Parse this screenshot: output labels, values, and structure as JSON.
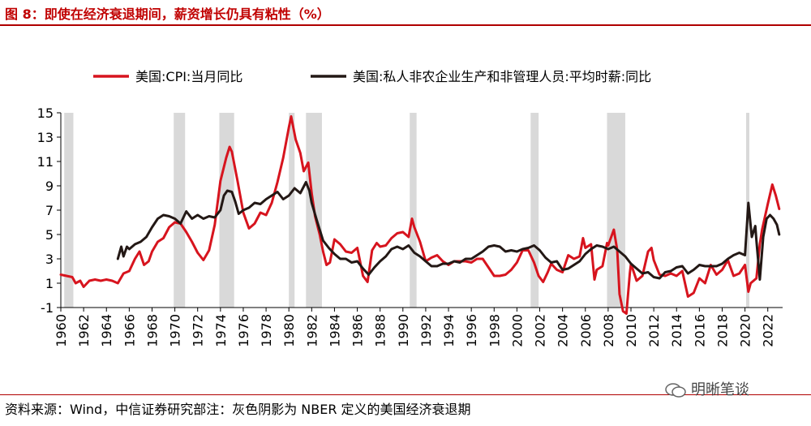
{
  "figure": {
    "title": "图 8：即使在经济衰退期间，薪资增长仍具有粘性（%）",
    "source": "资料来源：Wind，中信证券研究部注：灰色阴影为 NBER 定义的美国经济衰退期",
    "watermark": "明晰笔谈"
  },
  "chart_data": {
    "type": "line",
    "title": "",
    "xlabel": "",
    "ylabel": "",
    "ylim": [
      -1,
      15
    ],
    "yticks": [
      "15",
      "13",
      "11",
      "9",
      "7",
      "5",
      "3",
      "1",
      "-1"
    ],
    "xlim": [
      1960,
      2023.3
    ],
    "xticks": [
      "1960",
      "1962",
      "1964",
      "1966",
      "1968",
      "1970",
      "1972",
      "1974",
      "1976",
      "1978",
      "1980",
      "1982",
      "1984",
      "1986",
      "1988",
      "1990",
      "1992",
      "1994",
      "1996",
      "1998",
      "2000",
      "2002",
      "2004",
      "2006",
      "2008",
      "2010",
      "2012",
      "2014",
      "2016",
      "2018",
      "2020",
      "2022"
    ],
    "grid": false,
    "legend_position": "top",
    "recessions": [
      [
        1960.3,
        1961.1
      ],
      [
        1969.9,
        1970.9
      ],
      [
        1973.9,
        1975.2
      ],
      [
        1980.0,
        1980.5
      ],
      [
        1981.5,
        1982.9
      ],
      [
        1990.6,
        1991.2
      ],
      [
        2001.2,
        2001.9
      ],
      [
        2007.9,
        2009.5
      ],
      [
        2020.1,
        2020.3
      ]
    ],
    "series": [
      {
        "name": "美国:CPI:当月同比",
        "color": "#d7141e",
        "points": [
          [
            1960.0,
            1.7
          ],
          [
            1960.5,
            1.6
          ],
          [
            1961.0,
            1.5
          ],
          [
            1961.3,
            1.0
          ],
          [
            1961.7,
            1.2
          ],
          [
            1962.0,
            0.7
          ],
          [
            1962.5,
            1.2
          ],
          [
            1963.0,
            1.3
          ],
          [
            1963.5,
            1.2
          ],
          [
            1964.0,
            1.3
          ],
          [
            1964.5,
            1.2
          ],
          [
            1965.0,
            1.0
          ],
          [
            1965.5,
            1.8
          ],
          [
            1966.0,
            2.0
          ],
          [
            1966.5,
            3.0
          ],
          [
            1966.9,
            3.6
          ],
          [
            1967.3,
            2.5
          ],
          [
            1967.7,
            2.8
          ],
          [
            1968.0,
            3.6
          ],
          [
            1968.5,
            4.4
          ],
          [
            1969.0,
            4.7
          ],
          [
            1969.5,
            5.6
          ],
          [
            1970.0,
            6.0
          ],
          [
            1970.5,
            5.9
          ],
          [
            1971.0,
            5.2
          ],
          [
            1971.5,
            4.4
          ],
          [
            1972.0,
            3.5
          ],
          [
            1972.5,
            2.9
          ],
          [
            1973.0,
            3.7
          ],
          [
            1973.5,
            5.8
          ],
          [
            1974.0,
            9.4
          ],
          [
            1974.5,
            11.3
          ],
          [
            1974.8,
            12.2
          ],
          [
            1975.0,
            11.8
          ],
          [
            1975.5,
            9.4
          ],
          [
            1976.0,
            6.8
          ],
          [
            1976.5,
            5.5
          ],
          [
            1977.0,
            5.9
          ],
          [
            1977.5,
            6.8
          ],
          [
            1978.0,
            6.6
          ],
          [
            1978.5,
            7.6
          ],
          [
            1979.0,
            9.3
          ],
          [
            1979.5,
            11.3
          ],
          [
            1980.0,
            13.8
          ],
          [
            1980.2,
            14.7
          ],
          [
            1980.6,
            12.8
          ],
          [
            1981.0,
            11.7
          ],
          [
            1981.3,
            10.2
          ],
          [
            1981.7,
            10.9
          ],
          [
            1982.0,
            8.4
          ],
          [
            1982.3,
            6.5
          ],
          [
            1982.7,
            5.0
          ],
          [
            1983.0,
            3.6
          ],
          [
            1983.3,
            2.5
          ],
          [
            1983.6,
            2.7
          ],
          [
            1984.0,
            4.6
          ],
          [
            1984.5,
            4.2
          ],
          [
            1985.0,
            3.6
          ],
          [
            1985.5,
            3.5
          ],
          [
            1986.0,
            3.9
          ],
          [
            1986.5,
            1.6
          ],
          [
            1986.9,
            1.1
          ],
          [
            1987.3,
            3.7
          ],
          [
            1987.7,
            4.3
          ],
          [
            1988.0,
            4.0
          ],
          [
            1988.5,
            4.1
          ],
          [
            1989.0,
            4.7
          ],
          [
            1989.5,
            5.1
          ],
          [
            1990.0,
            5.2
          ],
          [
            1990.5,
            4.8
          ],
          [
            1990.8,
            6.3
          ],
          [
            1991.0,
            5.6
          ],
          [
            1991.5,
            4.4
          ],
          [
            1992.0,
            2.8
          ],
          [
            1992.5,
            3.1
          ],
          [
            1993.0,
            3.3
          ],
          [
            1993.5,
            2.8
          ],
          [
            1994.0,
            2.5
          ],
          [
            1994.5,
            2.8
          ],
          [
            1995.0,
            2.8
          ],
          [
            1995.5,
            2.8
          ],
          [
            1996.0,
            2.7
          ],
          [
            1996.5,
            3.0
          ],
          [
            1997.0,
            3.0
          ],
          [
            1997.5,
            2.3
          ],
          [
            1998.0,
            1.6
          ],
          [
            1998.5,
            1.6
          ],
          [
            1999.0,
            1.7
          ],
          [
            1999.5,
            2.1
          ],
          [
            2000.0,
            2.7
          ],
          [
            2000.5,
            3.7
          ],
          [
            2001.0,
            3.7
          ],
          [
            2001.5,
            2.7
          ],
          [
            2001.9,
            1.6
          ],
          [
            2002.3,
            1.1
          ],
          [
            2002.7,
            1.9
          ],
          [
            2003.0,
            2.6
          ],
          [
            2003.5,
            2.1
          ],
          [
            2004.0,
            1.9
          ],
          [
            2004.5,
            3.3
          ],
          [
            2005.0,
            3.0
          ],
          [
            2005.5,
            3.2
          ],
          [
            2005.8,
            4.7
          ],
          [
            2006.0,
            3.9
          ],
          [
            2006.5,
            4.2
          ],
          [
            2006.8,
            1.3
          ],
          [
            2007.0,
            2.1
          ],
          [
            2007.5,
            2.4
          ],
          [
            2007.9,
            4.3
          ],
          [
            2008.0,
            4.1
          ],
          [
            2008.5,
            5.4
          ],
          [
            2008.8,
            3.7
          ],
          [
            2009.0,
            0.1
          ],
          [
            2009.3,
            -1.3
          ],
          [
            2009.6,
            -1.5
          ],
          [
            2009.9,
            1.8
          ],
          [
            2010.0,
            2.6
          ],
          [
            2010.5,
            1.2
          ],
          [
            2011.0,
            1.6
          ],
          [
            2011.5,
            3.6
          ],
          [
            2011.8,
            3.9
          ],
          [
            2012.0,
            2.9
          ],
          [
            2012.5,
            1.7
          ],
          [
            2013.0,
            1.6
          ],
          [
            2013.5,
            1.8
          ],
          [
            2014.0,
            1.6
          ],
          [
            2014.5,
            2.0
          ],
          [
            2015.0,
            -0.1
          ],
          [
            2015.5,
            0.2
          ],
          [
            2016.0,
            1.4
          ],
          [
            2016.5,
            1.0
          ],
          [
            2017.0,
            2.5
          ],
          [
            2017.5,
            1.7
          ],
          [
            2018.0,
            2.1
          ],
          [
            2018.5,
            2.9
          ],
          [
            2019.0,
            1.6
          ],
          [
            2019.5,
            1.8
          ],
          [
            2020.0,
            2.5
          ],
          [
            2020.3,
            0.3
          ],
          [
            2020.5,
            1.0
          ],
          [
            2021.0,
            1.4
          ],
          [
            2021.3,
            4.2
          ],
          [
            2021.5,
            5.4
          ],
          [
            2022.0,
            7.5
          ],
          [
            2022.4,
            9.1
          ],
          [
            2022.7,
            8.2
          ],
          [
            2023.0,
            7.1
          ]
        ]
      },
      {
        "name": "美国:私人非农企业生产和非管理人员:平均时薪:同比",
        "color": "#231815",
        "points": [
          [
            1965.0,
            3.0
          ],
          [
            1965.3,
            4.0
          ],
          [
            1965.5,
            3.2
          ],
          [
            1965.8,
            4.0
          ],
          [
            1966.0,
            3.8
          ],
          [
            1966.5,
            4.2
          ],
          [
            1967.0,
            4.4
          ],
          [
            1967.5,
            4.8
          ],
          [
            1968.0,
            5.6
          ],
          [
            1968.5,
            6.3
          ],
          [
            1969.0,
            6.6
          ],
          [
            1969.5,
            6.5
          ],
          [
            1970.0,
            6.3
          ],
          [
            1970.5,
            5.9
          ],
          [
            1971.0,
            6.9
          ],
          [
            1971.5,
            6.3
          ],
          [
            1972.0,
            6.6
          ],
          [
            1972.5,
            6.3
          ],
          [
            1973.0,
            6.5
          ],
          [
            1973.5,
            6.4
          ],
          [
            1974.0,
            7.0
          ],
          [
            1974.3,
            8.2
          ],
          [
            1974.6,
            8.6
          ],
          [
            1975.0,
            8.5
          ],
          [
            1975.3,
            7.7
          ],
          [
            1975.6,
            6.7
          ],
          [
            1976.0,
            7.0
          ],
          [
            1976.5,
            7.2
          ],
          [
            1977.0,
            7.6
          ],
          [
            1977.5,
            7.5
          ],
          [
            1978.0,
            7.9
          ],
          [
            1978.5,
            8.2
          ],
          [
            1979.0,
            8.5
          ],
          [
            1979.5,
            7.9
          ],
          [
            1980.0,
            8.2
          ],
          [
            1980.5,
            8.8
          ],
          [
            1981.0,
            8.4
          ],
          [
            1981.5,
            9.3
          ],
          [
            1981.8,
            8.6
          ],
          [
            1982.0,
            7.6
          ],
          [
            1982.5,
            6.0
          ],
          [
            1983.0,
            4.5
          ],
          [
            1983.5,
            3.9
          ],
          [
            1984.0,
            3.4
          ],
          [
            1984.5,
            3.0
          ],
          [
            1985.0,
            3.0
          ],
          [
            1985.5,
            2.7
          ],
          [
            1986.0,
            2.8
          ],
          [
            1986.5,
            2.2
          ],
          [
            1987.0,
            1.7
          ],
          [
            1987.5,
            2.3
          ],
          [
            1988.0,
            2.8
          ],
          [
            1988.5,
            3.2
          ],
          [
            1989.0,
            3.8
          ],
          [
            1989.5,
            4.0
          ],
          [
            1990.0,
            3.8
          ],
          [
            1990.5,
            4.1
          ],
          [
            1991.0,
            3.5
          ],
          [
            1991.5,
            3.2
          ],
          [
            1992.0,
            2.8
          ],
          [
            1992.5,
            2.4
          ],
          [
            1993.0,
            2.4
          ],
          [
            1993.5,
            2.6
          ],
          [
            1994.0,
            2.6
          ],
          [
            1994.5,
            2.8
          ],
          [
            1995.0,
            2.7
          ],
          [
            1995.5,
            3.0
          ],
          [
            1996.0,
            3.0
          ],
          [
            1996.5,
            3.3
          ],
          [
            1997.0,
            3.6
          ],
          [
            1997.5,
            4.0
          ],
          [
            1998.0,
            4.1
          ],
          [
            1998.5,
            4.0
          ],
          [
            1999.0,
            3.6
          ],
          [
            1999.5,
            3.7
          ],
          [
            2000.0,
            3.6
          ],
          [
            2000.5,
            3.8
          ],
          [
            2001.0,
            3.9
          ],
          [
            2001.5,
            4.1
          ],
          [
            2002.0,
            3.7
          ],
          [
            2002.5,
            3.1
          ],
          [
            2003.0,
            2.7
          ],
          [
            2003.5,
            2.8
          ],
          [
            2004.0,
            2.1
          ],
          [
            2004.5,
            2.2
          ],
          [
            2005.0,
            2.5
          ],
          [
            2005.5,
            2.8
          ],
          [
            2006.0,
            3.4
          ],
          [
            2006.5,
            3.8
          ],
          [
            2007.0,
            4.1
          ],
          [
            2007.5,
            4.0
          ],
          [
            2008.0,
            3.8
          ],
          [
            2008.5,
            4.0
          ],
          [
            2009.0,
            3.6
          ],
          [
            2009.5,
            3.2
          ],
          [
            2010.0,
            2.6
          ],
          [
            2010.5,
            2.2
          ],
          [
            2011.0,
            1.8
          ],
          [
            2011.5,
            1.9
          ],
          [
            2012.0,
            1.5
          ],
          [
            2012.5,
            1.4
          ],
          [
            2013.0,
            1.9
          ],
          [
            2013.5,
            2.0
          ],
          [
            2014.0,
            2.3
          ],
          [
            2014.5,
            2.4
          ],
          [
            2015.0,
            1.8
          ],
          [
            2015.5,
            2.1
          ],
          [
            2016.0,
            2.5
          ],
          [
            2016.5,
            2.4
          ],
          [
            2017.0,
            2.4
          ],
          [
            2017.5,
            2.4
          ],
          [
            2018.0,
            2.6
          ],
          [
            2018.5,
            3.0
          ],
          [
            2019.0,
            3.3
          ],
          [
            2019.5,
            3.5
          ],
          [
            2020.0,
            3.3
          ],
          [
            2020.3,
            7.6
          ],
          [
            2020.6,
            4.8
          ],
          [
            2020.9,
            5.7
          ],
          [
            2021.0,
            4.5
          ],
          [
            2021.3,
            1.3
          ],
          [
            2021.6,
            4.8
          ],
          [
            2021.9,
            6.3
          ],
          [
            2022.2,
            6.6
          ],
          [
            2022.5,
            6.3
          ],
          [
            2022.8,
            5.8
          ],
          [
            2023.0,
            5.0
          ]
        ]
      }
    ]
  }
}
